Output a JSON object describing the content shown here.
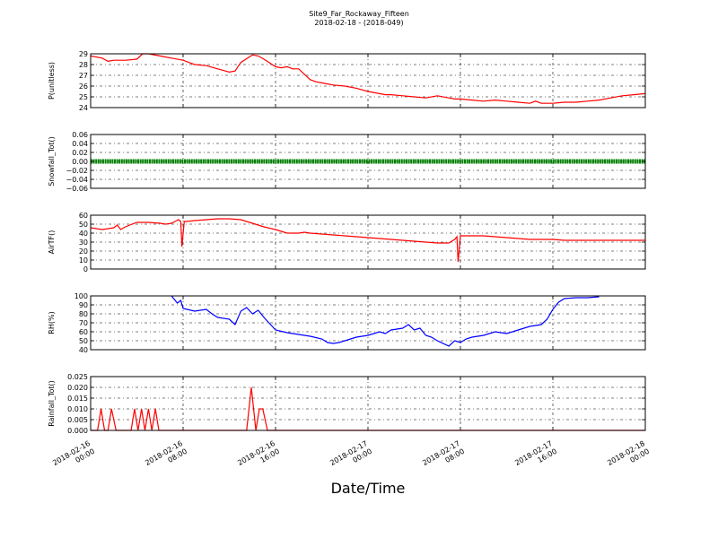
{
  "title": "Site9_Far_Rockaway_Fifteen",
  "subtitle": "2018-02-18 - (2018-049)",
  "xlabel": "Date/Time",
  "x_tick_labels": [
    [
      "2018-02-16",
      "00:00"
    ],
    [
      "2018-02-16",
      "08:00"
    ],
    [
      "2018-02-16",
      "16:00"
    ],
    [
      "2018-02-17",
      "00:00"
    ],
    [
      "2018-02-17",
      "08:00"
    ],
    [
      "2018-02-17",
      "16:00"
    ],
    [
      "2018-02-18",
      "00:00"
    ]
  ],
  "chart_data": [
    {
      "type": "line",
      "ylabel": "P(unitless)",
      "ylim": [
        24,
        29
      ],
      "yticks": [
        24,
        25,
        26,
        27,
        28,
        29
      ],
      "ytick_labels": [
        "24",
        "25",
        "26",
        "27",
        "28",
        "29"
      ],
      "xlim_hours": [
        0,
        48
      ],
      "grid": true,
      "color": "#ff0000",
      "x": [
        0,
        1,
        1.5,
        2,
        3,
        4,
        4.5,
        5,
        6,
        6.5,
        7,
        8,
        8.5,
        9,
        10,
        11,
        12,
        12.5,
        13,
        14,
        14.5,
        15,
        16,
        16.5,
        17,
        17.5,
        18,
        19,
        19.5,
        20,
        20.5,
        21,
        22,
        23,
        24,
        25,
        25.5,
        26,
        27,
        28,
        29,
        30,
        31,
        31.5,
        32,
        33,
        34,
        35,
        36,
        37,
        38,
        38.5,
        39,
        40,
        41,
        42,
        43,
        44,
        45,
        46,
        47,
        48
      ],
      "y": [
        28.8,
        28.6,
        28.3,
        28.4,
        28.4,
        28.5,
        29.0,
        29.0,
        28.8,
        28.7,
        28.6,
        28.4,
        28.2,
        28.0,
        27.9,
        27.6,
        27.3,
        27.4,
        28.2,
        28.9,
        28.8,
        28.5,
        27.8,
        27.7,
        27.8,
        27.6,
        27.6,
        26.6,
        26.4,
        26.3,
        26.2,
        26.1,
        26.0,
        25.8,
        25.5,
        25.3,
        25.2,
        25.2,
        25.1,
        25.0,
        24.9,
        25.1,
        24.9,
        24.8,
        24.8,
        24.7,
        24.6,
        24.7,
        24.6,
        24.5,
        24.4,
        24.6,
        24.4,
        24.4,
        24.5,
        24.5,
        24.6,
        24.7,
        24.9,
        25.1,
        25.2,
        25.3
      ]
    },
    {
      "type": "scatter",
      "ylabel": "Snowfall_Tot()",
      "ylim": [
        -0.06,
        0.06
      ],
      "yticks": [
        -0.06,
        -0.04,
        -0.02,
        0.0,
        0.02,
        0.04,
        0.06
      ],
      "ytick_labels": [
        "−0.06",
        "−0.04",
        "−0.02",
        "0.00",
        "0.02",
        "0.04",
        "0.06"
      ],
      "xlim_hours": [
        0,
        48
      ],
      "grid": true,
      "color": "#008000",
      "x_range": [
        0,
        48
      ],
      "constant_value": 0.0
    },
    {
      "type": "line",
      "ylabel": "AirTF()",
      "ylim": [
        0,
        60
      ],
      "yticks": [
        0,
        10,
        20,
        30,
        40,
        50,
        60
      ],
      "ytick_labels": [
        "0",
        "10",
        "20",
        "30",
        "40",
        "50",
        "60"
      ],
      "xlim_hours": [
        0,
        48
      ],
      "grid": true,
      "color": "#ff0000",
      "x": [
        0,
        1,
        2,
        2.3,
        2.6,
        3,
        4,
        5,
        6,
        6.5,
        7,
        7.5,
        7.8,
        8.0,
        8.3,
        9,
        10,
        11,
        12,
        12.5,
        13,
        13.5,
        14,
        14.5,
        15,
        16,
        16.5,
        17,
        17.5,
        18,
        19,
        20,
        21,
        22,
        23,
        24,
        25,
        26,
        27,
        28,
        29,
        30,
        31,
        31.5,
        31.7,
        32,
        33,
        34,
        35,
        36,
        37,
        38,
        39,
        40,
        41,
        42,
        43,
        44,
        45,
        46,
        47,
        48
      ],
      "y": [
        46,
        44,
        46,
        49,
        44,
        49,
        52,
        52,
        52,
        51,
        50,
        51,
        52,
        54,
        53,
        50,
        25,
        53,
        54,
        55,
        56,
        56,
        56,
        56,
        54,
        49,
        46,
        44,
        42,
        41,
        39,
        41,
        40,
        39,
        38,
        37,
        36,
        35,
        34,
        33,
        32,
        31,
        30,
        30,
        29,
        29,
        33,
        35,
        36,
        9,
        37,
        37,
        37,
        36,
        35,
        34,
        33,
        33,
        33,
        32,
        32,
        32
      ],
      "x_sorted": [
        0,
        1,
        2,
        2.3,
        2.6,
        3,
        4,
        5,
        6,
        6.5,
        7,
        7.3,
        7.6,
        7.8,
        7.9,
        8.1,
        8.3,
        9,
        10,
        11,
        12,
        13,
        14,
        15,
        16,
        16.5,
        17,
        17.5,
        18,
        18.5,
        19,
        20,
        21,
        22,
        23,
        24,
        25,
        26,
        27,
        28,
        29,
        30,
        31,
        31.5,
        31.7,
        31.8,
        32,
        33,
        34,
        35,
        36,
        37,
        38,
        39,
        40,
        41,
        42,
        43,
        44,
        45,
        46,
        47,
        48
      ],
      "y_sorted": [
        46,
        44,
        46,
        49,
        44,
        47,
        52,
        52,
        51,
        50,
        51,
        53,
        55,
        53,
        25,
        53,
        53,
        54,
        55,
        56,
        56,
        55,
        51,
        47,
        44,
        42,
        40,
        40,
        40,
        41,
        40,
        39,
        38,
        37,
        36,
        35,
        34,
        33,
        32,
        31,
        30,
        29,
        29,
        33,
        36,
        8,
        37,
        37,
        37,
        36,
        35,
        34,
        33,
        33,
        33,
        32,
        32,
        32,
        32,
        32,
        32,
        32,
        32
      ]
    },
    {
      "type": "line",
      "ylabel": "RH(%)",
      "ylim": [
        40,
        100
      ],
      "yticks": [
        40,
        50,
        60,
        70,
        80,
        90,
        100
      ],
      "ytick_labels": [
        "40",
        "50",
        "60",
        "70",
        "80",
        "90",
        "100"
      ],
      "xlim_hours": [
        0,
        48
      ],
      "grid": true,
      "color": "#0000ff",
      "x": [
        7,
        7.5,
        7.8,
        8,
        9,
        10,
        10.5,
        11,
        12,
        12.5,
        13,
        13.5,
        14,
        14.5,
        15,
        16,
        17,
        18,
        19,
        20,
        20.5,
        21,
        21.5,
        22,
        23,
        24,
        25,
        25.5,
        26,
        27,
        27.5,
        28,
        28.5,
        29,
        29.5,
        30,
        31,
        31.5,
        32,
        32.5,
        33,
        34,
        35,
        36,
        37,
        38,
        39,
        39.5,
        40,
        40.5,
        41,
        42,
        43,
        44
      ],
      "y": [
        100,
        92,
        95,
        86,
        83,
        85,
        80,
        76,
        74,
        68,
        83,
        87,
        80,
        84,
        76,
        62,
        59,
        57,
        55,
        52,
        48,
        47,
        48,
        50,
        54,
        56,
        60,
        58,
        62,
        64,
        68,
        62,
        64,
        56,
        54,
        50,
        44,
        50,
        48,
        52,
        54,
        56,
        60,
        58,
        62,
        66,
        68,
        74,
        85,
        93,
        97,
        98,
        98,
        99
      ]
    },
    {
      "type": "line",
      "ylabel": "Rainfall_Tot()",
      "ylim": [
        0,
        0.025
      ],
      "yticks": [
        0,
        0.005,
        0.01,
        0.015,
        0.02,
        0.025
      ],
      "ytick_labels": [
        "0.000",
        "0.005",
        "0.010",
        "0.015",
        "0.020",
        "0.025"
      ],
      "xlim_hours": [
        0,
        48
      ],
      "grid": true,
      "color": "#ff0000",
      "x": [
        0,
        0.6,
        0.9,
        1.2,
        1.5,
        1.8,
        2.2,
        3.5,
        3.8,
        4.1,
        4.4,
        4.7,
        5.0,
        5.3,
        5.6,
        5.9,
        6.2,
        6.5,
        13.5,
        13.9,
        14.3,
        14.6,
        14.9,
        15.3,
        48
      ],
      "y": [
        0,
        0,
        0.01,
        0,
        0,
        0.01,
        0,
        0,
        0.01,
        0,
        0.01,
        0,
        0.01,
        0,
        0.01,
        0,
        0,
        0,
        0,
        0.02,
        0,
        0.01,
        0.01,
        0,
        0
      ]
    }
  ]
}
